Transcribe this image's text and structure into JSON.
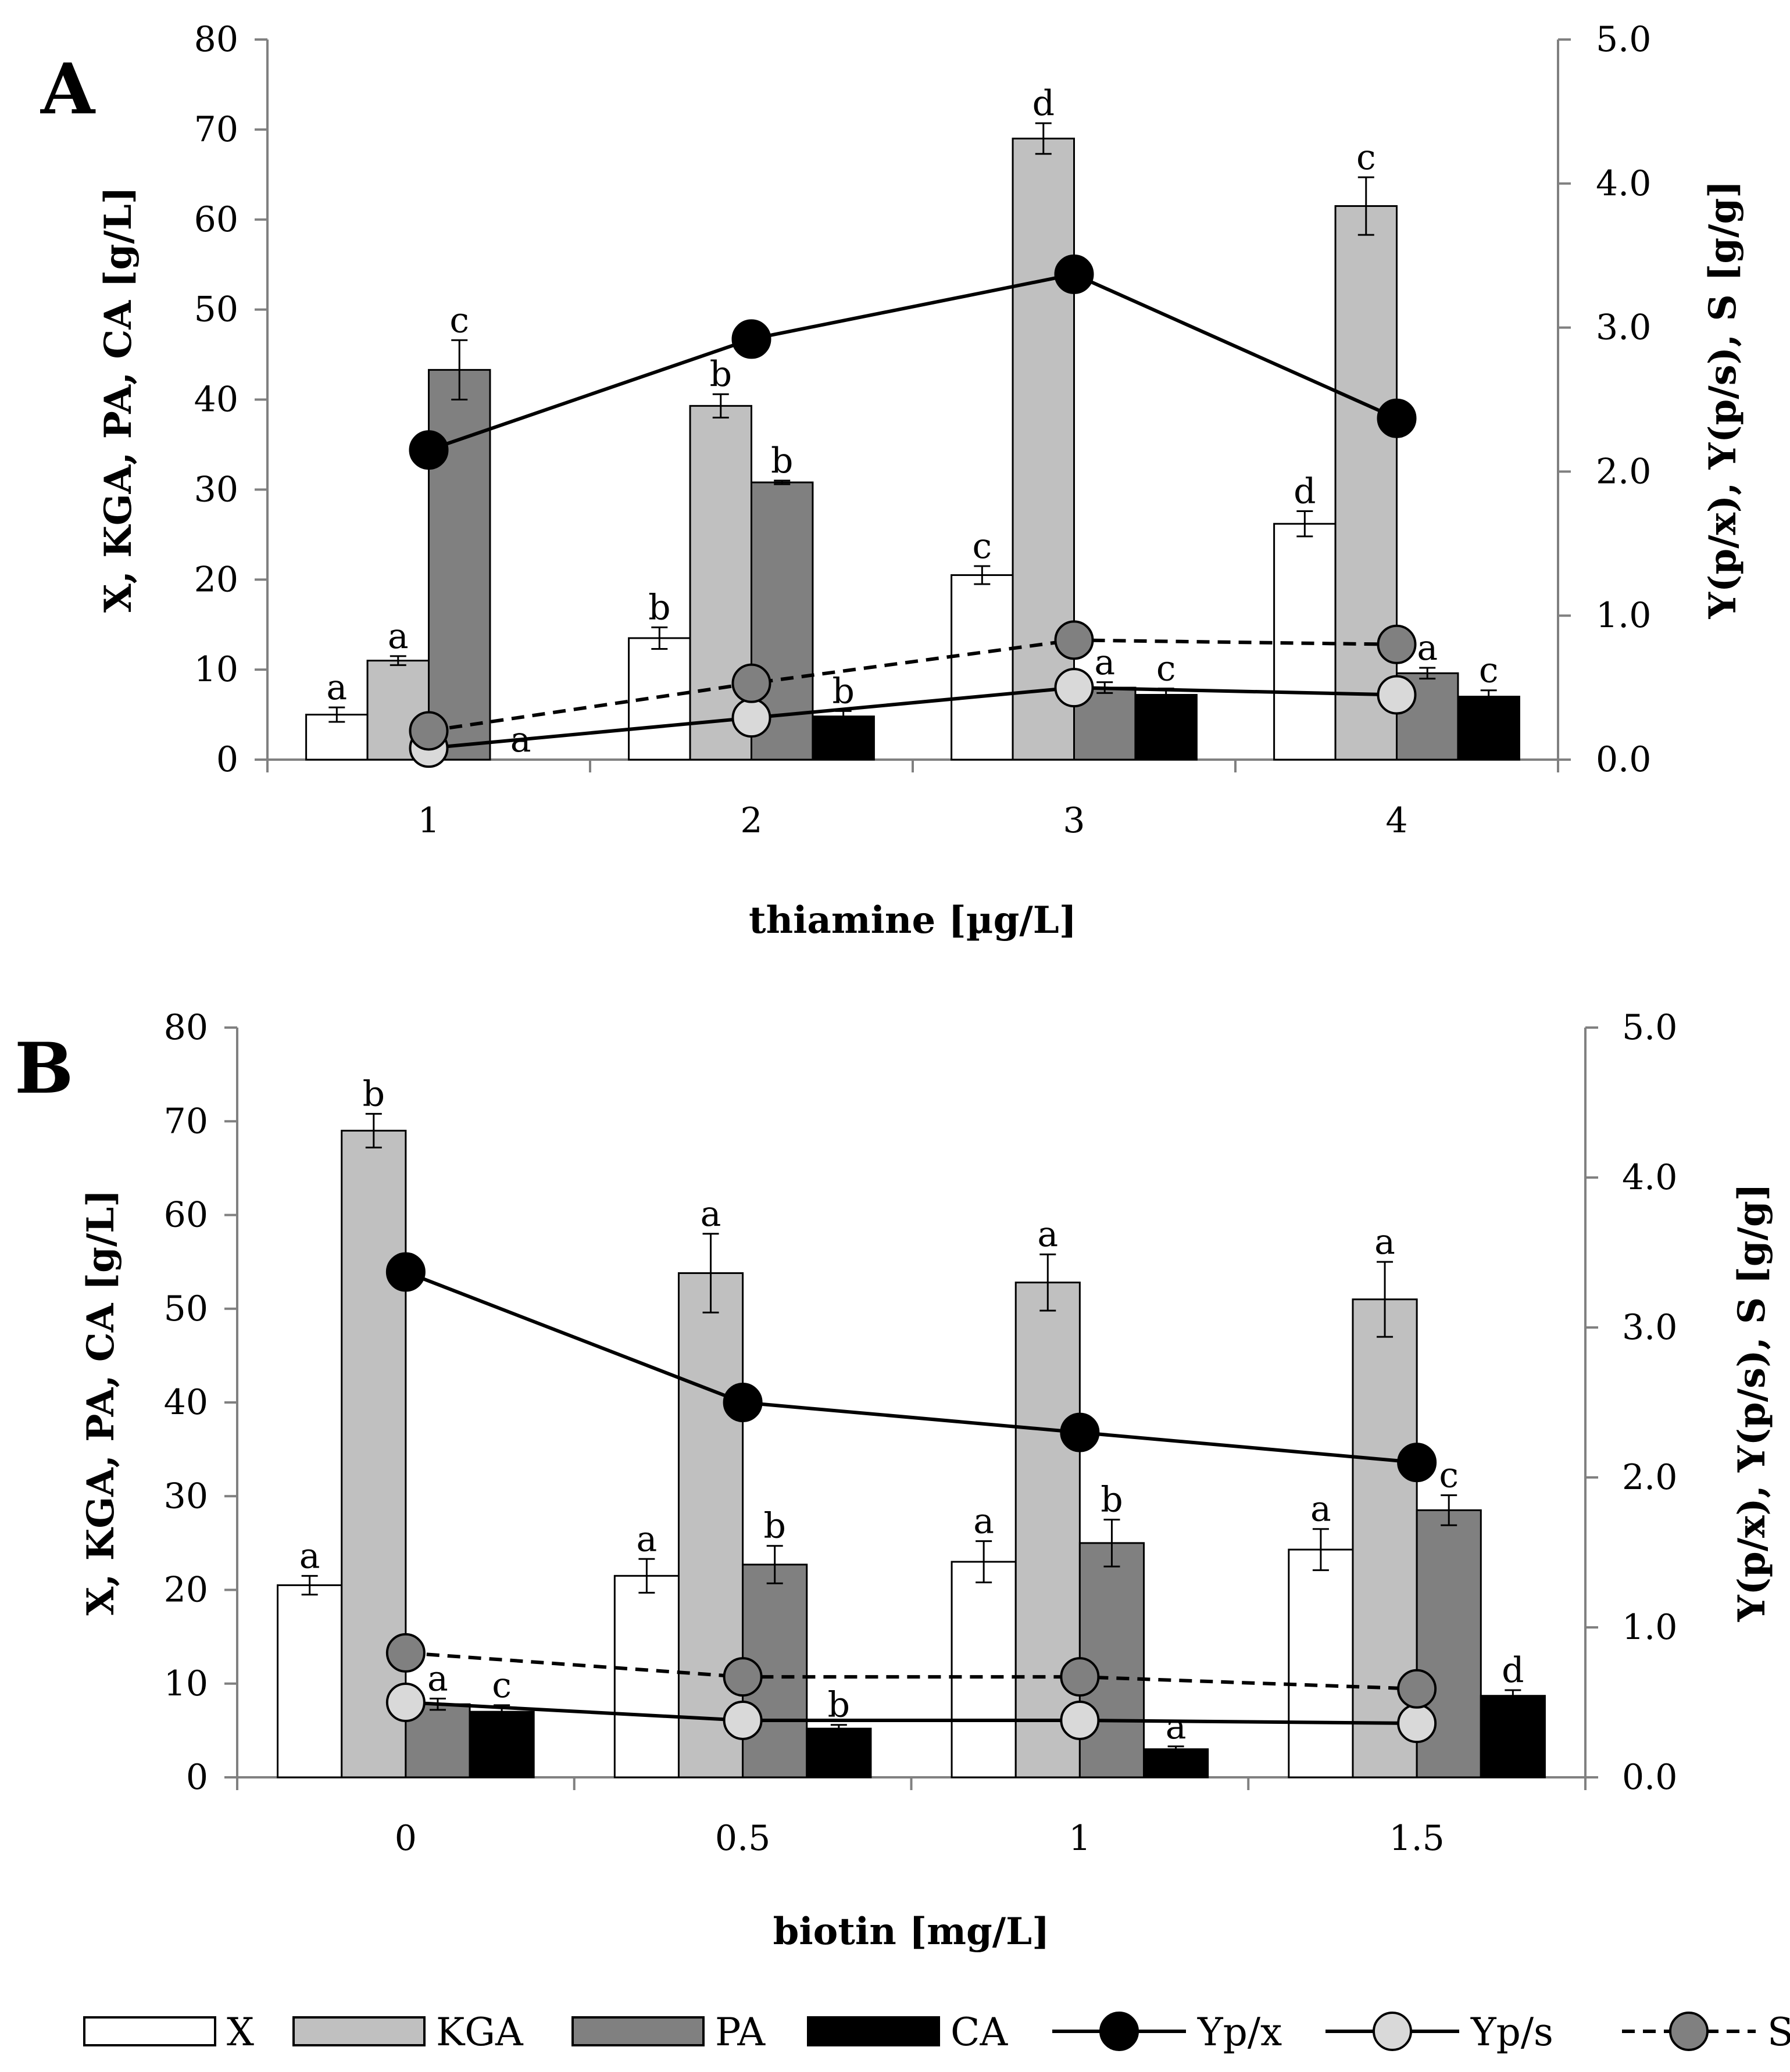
{
  "chart_data": [
    {
      "panel": "A",
      "type": "bar",
      "title": "",
      "xlabel": "thiamine [µg/L]",
      "ylabel": "X, KGA, PA, CA [g/L]",
      "ylabel_right": "Y(p/x), Y(p/s), S  [g/g]",
      "ylim": [
        0,
        80
      ],
      "ylim_right": [
        0,
        5
      ],
      "yticks": [
        "0",
        "10",
        "20",
        "30",
        "40",
        "50",
        "60",
        "70",
        "80"
      ],
      "yticks_right": [
        "0.0",
        "1.0",
        "2.0",
        "3.0",
        "4.0",
        "5.0"
      ],
      "categories": [
        "1",
        "2",
        "3",
        "4"
      ],
      "series": [
        {
          "name": "X",
          "color": "#ffffff",
          "values": [
            5.0,
            13.5,
            20.5,
            26.2
          ],
          "errors": [
            0.8,
            1.2,
            1.0,
            1.4
          ],
          "labels": [
            "a",
            "b",
            "c",
            "d"
          ]
        },
        {
          "name": "KGA",
          "color": "#c0c0c0",
          "values": [
            11.0,
            39.3,
            69.0,
            61.5
          ],
          "errors": [
            0.5,
            1.3,
            1.7,
            3.2
          ],
          "labels": [
            "a",
            "b",
            "d",
            "c"
          ]
        },
        {
          "name": "PA",
          "color": "#808080",
          "values": [
            43.3,
            30.8,
            8.0,
            9.6
          ],
          "errors": [
            3.3,
            0.2,
            0.6,
            0.6
          ],
          "labels": [
            "c",
            "b",
            "a",
            "a"
          ]
        },
        {
          "name": "CA",
          "color": "#000000",
          "values": [
            0,
            4.8,
            7.2,
            7.0
          ],
          "errors": [
            0,
            0.6,
            0.7,
            0.7
          ],
          "labels": [
            "a",
            "b",
            "c",
            "c"
          ]
        }
      ],
      "lines": [
        {
          "name": "Yp/x",
          "style": "solid",
          "marker_fill": "#000000",
          "values": [
            2.15,
            2.92,
            3.37,
            2.37
          ]
        },
        {
          "name": "Yp/s",
          "style": "solid",
          "marker_fill": "#d9d9d9",
          "values": [
            0.08,
            0.29,
            0.5,
            0.45
          ]
        },
        {
          "name": "S",
          "style": "dashed",
          "marker_fill": "#808080",
          "values": [
            0.2,
            0.53,
            0.83,
            0.8
          ]
        }
      ]
    },
    {
      "panel": "B",
      "type": "bar",
      "title": "",
      "xlabel": "biotin [mg/L]",
      "ylabel": "X, KGA, PA, CA [g/L]",
      "ylabel_right": "Y(p/x), Y(p/s), S  [g/g]",
      "ylim": [
        0,
        80
      ],
      "ylim_right": [
        0,
        5
      ],
      "yticks": [
        "0",
        "10",
        "20",
        "30",
        "40",
        "50",
        "60",
        "70",
        "80"
      ],
      "yticks_right": [
        "0.0",
        "1.0",
        "2.0",
        "3.0",
        "4.0",
        "5.0"
      ],
      "categories": [
        "0",
        "0.5",
        "1",
        "1.5"
      ],
      "series": [
        {
          "name": "X",
          "color": "#ffffff",
          "values": [
            20.5,
            21.5,
            23.0,
            24.3
          ],
          "errors": [
            1.0,
            1.8,
            2.2,
            2.2
          ],
          "labels": [
            "a",
            "a",
            "a",
            "a"
          ]
        },
        {
          "name": "KGA",
          "color": "#c0c0c0",
          "values": [
            69.0,
            53.8,
            52.8,
            51.0
          ],
          "errors": [
            1.8,
            4.2,
            3.0,
            4.0
          ],
          "labels": [
            "b",
            "a",
            "a",
            "a"
          ]
        },
        {
          "name": "PA",
          "color": "#808080",
          "values": [
            7.8,
            22.7,
            25.0,
            28.5
          ],
          "errors": [
            0.6,
            2.0,
            2.5,
            1.6
          ],
          "labels": [
            "a",
            "b",
            "b",
            "c"
          ]
        },
        {
          "name": "CA",
          "color": "#000000",
          "values": [
            7.0,
            5.2,
            3.0,
            8.7
          ],
          "errors": [
            0.7,
            0.4,
            0.3,
            0.6
          ],
          "labels": [
            "c",
            "b",
            "a",
            "d"
          ]
        }
      ],
      "lines": [
        {
          "name": "Yp/x",
          "style": "solid",
          "marker_fill": "#000000",
          "values": [
            3.37,
            2.5,
            2.3,
            2.1
          ]
        },
        {
          "name": "Yp/s",
          "style": "solid",
          "marker_fill": "#d9d9d9",
          "values": [
            0.5,
            0.38,
            0.38,
            0.36
          ]
        },
        {
          "name": "S",
          "style": "dashed",
          "marker_fill": "#808080",
          "values": [
            0.83,
            0.67,
            0.67,
            0.59
          ]
        }
      ]
    }
  ],
  "legend": [
    {
      "label": "X",
      "kind": "bar",
      "color": "#ffffff"
    },
    {
      "label": "KGA",
      "kind": "bar",
      "color": "#c0c0c0"
    },
    {
      "label": "PA",
      "kind": "bar",
      "color": "#808080"
    },
    {
      "label": "CA",
      "kind": "bar",
      "color": "#000000"
    },
    {
      "label": "Yp/x",
      "kind": "line",
      "style": "solid",
      "color": "#000000"
    },
    {
      "label": "Yp/s",
      "kind": "line",
      "style": "solid",
      "color": "#d9d9d9"
    },
    {
      "label": "S",
      "kind": "line",
      "style": "dashed",
      "color": "#808080"
    }
  ]
}
